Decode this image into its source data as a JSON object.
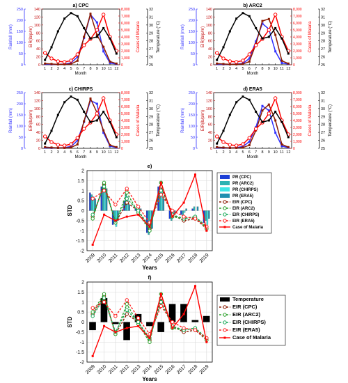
{
  "chart_data": [
    {
      "type": "line",
      "title": "a) CPC",
      "xlabel": "Month",
      "ylabel_left": "Rainfall (mm)",
      "ylabel_mid": "EIR(ib/p/m)",
      "ylabel_right1": "Cases of Malaria",
      "ylabel_right2": "Temperature (°C)",
      "x": [
        1,
        2,
        3,
        4,
        5,
        6,
        7,
        8,
        9,
        10,
        11,
        12
      ],
      "rainfall_ylim": [
        0,
        250
      ],
      "rainfall_ticks": [
        0,
        50,
        100,
        150,
        200,
        250
      ],
      "eir_ylim": [
        0,
        140
      ],
      "eir_ticks": [
        0,
        20,
        40,
        60,
        80,
        100,
        120,
        140
      ],
      "cases_ylim": [
        0,
        8000
      ],
      "cases_ticks": [
        "0",
        "1,000",
        "2,000",
        "3,000",
        "4,000",
        "5,000",
        "6,000",
        "7,000",
        "8,000"
      ],
      "temp_ylim": [
        25,
        32
      ],
      "temp_ticks": [
        25,
        26,
        27,
        28,
        29,
        30,
        31,
        32
      ],
      "series": [
        {
          "name": "Rainfall",
          "color": "#2f2fff",
          "values": [
            3,
            2,
            2,
            3,
            8,
            35,
            120,
            225,
            190,
            60,
            8,
            3
          ]
        },
        {
          "name": "EIR",
          "color": "#8b1a00",
          "values": [
            3,
            2,
            1,
            1,
            2,
            10,
            70,
            128,
            75,
            45,
            8,
            3
          ]
        },
        {
          "name": "Cases of Malaria",
          "color": "#ff0000",
          "values": [
            1700,
            900,
            500,
            400,
            600,
            1500,
            2800,
            3700,
            5000,
            7200,
            4000,
            2000
          ]
        },
        {
          "name": "Temperature",
          "color": "#000000",
          "values": [
            25.6,
            27.2,
            29.2,
            30.8,
            31.5,
            31.1,
            29.6,
            28.3,
            28.5,
            29.6,
            28.3,
            26.4
          ]
        }
      ]
    },
    {
      "type": "line",
      "title": "b) ARC2",
      "xlabel": "Month",
      "ylabel_left": "Rainfall (mm)",
      "ylabel_mid": "EIR(ib/p/m)",
      "ylabel_right1": "Cases of Malaria",
      "ylabel_right2": "Temperature (°C)",
      "x": [
        1,
        2,
        3,
        4,
        5,
        6,
        7,
        8,
        9,
        10,
        11,
        12
      ],
      "rainfall_ylim": [
        0,
        250
      ],
      "rainfall_ticks": [
        0,
        50,
        100,
        150,
        200,
        250
      ],
      "eir_ylim": [
        0,
        140
      ],
      "eir_ticks": [
        0,
        20,
        40,
        60,
        80,
        100,
        120,
        140
      ],
      "cases_ylim": [
        0,
        8000
      ],
      "cases_ticks": [
        "0",
        "1,000",
        "2,000",
        "3,000",
        "4,000",
        "5,000",
        "6,000",
        "7,000",
        "8,000"
      ],
      "temp_ylim": [
        25,
        32
      ],
      "temp_ticks": [
        25,
        26,
        27,
        28,
        29,
        30,
        31,
        32
      ],
      "series": [
        {
          "name": "Rainfall",
          "color": "#2f2fff",
          "values": [
            3,
            2,
            2,
            3,
            6,
            28,
            105,
            185,
            160,
            60,
            8,
            3
          ]
        },
        {
          "name": "EIR",
          "color": "#8b1a00",
          "values": [
            3,
            2,
            1,
            1,
            2,
            8,
            52,
            110,
            115,
            75,
            10,
            3
          ]
        },
        {
          "name": "Cases of Malaria",
          "color": "#ff0000",
          "values": [
            1700,
            900,
            500,
            400,
            600,
            1500,
            2800,
            3700,
            5000,
            7200,
            4000,
            2000
          ]
        },
        {
          "name": "Temperature",
          "color": "#000000",
          "values": [
            25.6,
            27.2,
            29.2,
            30.8,
            31.5,
            31.1,
            29.6,
            28.3,
            28.5,
            29.6,
            28.3,
            26.4
          ]
        }
      ]
    },
    {
      "type": "line",
      "title": "c) CHIRPS",
      "xlabel": "Month",
      "ylabel_left": "Rainfall (mm)",
      "ylabel_mid": "EIR(ib/p/m)",
      "ylabel_right1": "Cases of Malaria",
      "ylabel_right2": "Temperature (°C)",
      "x": [
        1,
        2,
        3,
        4,
        5,
        6,
        7,
        8,
        9,
        10,
        11,
        12
      ],
      "rainfall_ylim": [
        0,
        250
      ],
      "rainfall_ticks": [
        0,
        50,
        100,
        150,
        200,
        250
      ],
      "eir_ylim": [
        0,
        140
      ],
      "eir_ticks": [
        0,
        20,
        40,
        60,
        80,
        100,
        120,
        140
      ],
      "cases_ylim": [
        0,
        8000
      ],
      "cases_ticks": [
        "0",
        "1,000",
        "2,000",
        "3,000",
        "4,000",
        "5,000",
        "6,000",
        "7,000",
        "8,000"
      ],
      "temp_ylim": [
        25,
        32
      ],
      "temp_ticks": [
        25,
        26,
        27,
        28,
        29,
        30,
        31,
        32
      ],
      "series": [
        {
          "name": "Rainfall",
          "color": "#2f2fff",
          "values": [
            3,
            2,
            2,
            3,
            8,
            35,
            118,
            215,
            200,
            70,
            10,
            3
          ]
        },
        {
          "name": "EIR",
          "color": "#8b1a00",
          "values": [
            3,
            2,
            1,
            1,
            2,
            10,
            68,
            125,
            90,
            45,
            8,
            3
          ]
        },
        {
          "name": "Cases of Malaria",
          "color": "#ff0000",
          "values": [
            1700,
            900,
            500,
            400,
            600,
            1500,
            2800,
            3700,
            5000,
            7200,
            4000,
            2000
          ]
        },
        {
          "name": "Temperature",
          "color": "#000000",
          "values": [
            25.6,
            27.2,
            29.2,
            30.8,
            31.5,
            31.1,
            29.6,
            28.3,
            28.5,
            29.6,
            28.3,
            26.4
          ]
        }
      ]
    },
    {
      "type": "line",
      "title": "d) ERA5",
      "xlabel": "Month",
      "ylabel_left": "Rainfall (mm)",
      "ylabel_mid": "EIR(ib/p/m)",
      "ylabel_right1": "Cases of Malaria",
      "ylabel_right2": "Temperature (°C)",
      "x": [
        1,
        2,
        3,
        4,
        5,
        6,
        7,
        8,
        9,
        10,
        11,
        12
      ],
      "rainfall_ylim": [
        0,
        250
      ],
      "rainfall_ticks": [
        0,
        50,
        100,
        150,
        200,
        250
      ],
      "eir_ylim": [
        0,
        140
      ],
      "eir_ticks": [
        0,
        20,
        40,
        60,
        80,
        100,
        120,
        140
      ],
      "cases_ylim": [
        0,
        8000
      ],
      "cases_ticks": [
        "0",
        "1,000",
        "2,000",
        "3,000",
        "4,000",
        "5,000",
        "6,000",
        "7,000",
        "8,000"
      ],
      "temp_ylim": [
        25,
        32
      ],
      "temp_ticks": [
        25,
        26,
        27,
        28,
        29,
        30,
        31,
        32
      ],
      "series": [
        {
          "name": "Rainfall",
          "color": "#2f2fff",
          "values": [
            3,
            2,
            2,
            3,
            8,
            30,
            95,
            190,
            170,
            70,
            10,
            3
          ]
        },
        {
          "name": "EIR",
          "color": "#8b1a00",
          "values": [
            3,
            2,
            1,
            1,
            2,
            8,
            45,
            95,
            110,
            70,
            10,
            3
          ]
        },
        {
          "name": "Cases of Malaria",
          "color": "#ff0000",
          "values": [
            1700,
            900,
            500,
            400,
            600,
            1500,
            2800,
            3700,
            5000,
            7200,
            4000,
            2000
          ]
        },
        {
          "name": "Temperature",
          "color": "#000000",
          "values": [
            25.6,
            27.2,
            29.2,
            30.8,
            31.5,
            31.1,
            29.6,
            28.3,
            28.5,
            29.6,
            28.3,
            26.4
          ]
        }
      ]
    },
    {
      "type": "bar",
      "title": "e)",
      "xlabel": "Years",
      "ylabel": "STD",
      "ylim": [
        -2,
        2
      ],
      "yticks": [
        "-2",
        "-1.5",
        "-1",
        "-0.5",
        "0",
        "0.5",
        "1",
        "1.5",
        "2"
      ],
      "grid": true,
      "legend_position": "right",
      "categories": [
        "2009",
        "2010",
        "2011",
        "2012",
        "2013",
        "2014",
        "2015",
        "2016",
        "2017",
        "2018",
        "2019"
      ],
      "bar_series": [
        {
          "name": "PR (CPC)",
          "color": "#1c3fd6",
          "values": [
            0.9,
            1.2,
            -0.7,
            0.5,
            0.1,
            -1.1,
            1.2,
            -0.4,
            -0.2,
            0.1,
            -0.6
          ]
        },
        {
          "name": "PR (ARC2)",
          "color": "#2bb3b3",
          "values": [
            0.8,
            1.4,
            -0.6,
            0.9,
            0.0,
            -1.2,
            1.0,
            -0.5,
            -0.3,
            0.2,
            -0.5
          ]
        },
        {
          "name": "PR (CHIRPS)",
          "color": "#3fe6e6",
          "values": [
            0.7,
            1.3,
            -0.8,
            0.7,
            0.2,
            -1.0,
            1.1,
            -0.3,
            -0.1,
            0.0,
            -0.7
          ]
        },
        {
          "name": "PR (ERA5)",
          "color": "#1f8fb0",
          "values": [
            0.6,
            1.1,
            -0.5,
            0.3,
            0.1,
            -0.9,
            0.6,
            -0.2,
            0.1,
            0.2,
            -0.4
          ]
        }
      ],
      "line_series": [
        {
          "name": "EIR (CPC)",
          "color": "#8b1a00",
          "dashed": true,
          "values": [
            -0.3,
            1.3,
            -0.6,
            0.4,
            0.0,
            -0.9,
            1.2,
            -0.2,
            -0.5,
            -0.4,
            -0.9
          ]
        },
        {
          "name": "EIR (ARC2)",
          "color": "#2aa02a",
          "dashed": true,
          "values": [
            -0.4,
            1.4,
            -0.6,
            0.9,
            -0.1,
            -1.0,
            1.4,
            -0.3,
            -0.4,
            -0.3,
            -0.9
          ]
        },
        {
          "name": "EIR (CHIRPS)",
          "color": "#1aaa5a",
          "dashed": true,
          "values": [
            -0.2,
            1.2,
            -0.5,
            0.6,
            0.0,
            -0.8,
            1.0,
            -0.2,
            -0.4,
            -0.3,
            -0.8
          ]
        },
        {
          "name": "EIR (ERA5)",
          "color": "#ff2222",
          "dashed": true,
          "values": [
            0.6,
            1.0,
            0.3,
            1.1,
            0.2,
            -0.6,
            0.8,
            0.0,
            -0.3,
            -0.4,
            -0.8
          ]
        },
        {
          "name": "Case of Malaria",
          "color": "#ff0000",
          "dashed": false,
          "values": [
            -1.7,
            -0.2,
            -0.5,
            -0.3,
            -0.2,
            -0.8,
            1.4,
            -0.3,
            0.4,
            1.8,
            -1.0
          ]
        }
      ]
    },
    {
      "type": "bar",
      "title": "f)",
      "xlabel": "Years",
      "ylabel": "STD",
      "ylim": [
        -2,
        2
      ],
      "yticks": [
        "-2",
        "-1.5",
        "-1",
        "-0.5",
        "0",
        "0.5",
        "1",
        "1.5",
        "2"
      ],
      "grid": true,
      "legend_position": "right",
      "categories": [
        "2009",
        "2010",
        "2011",
        "2012",
        "2013",
        "2014",
        "2015",
        "2016",
        "2017",
        "2018",
        "2019"
      ],
      "bar_series": [
        {
          "name": "Temperature",
          "color": "#000000",
          "values": [
            -0.4,
            1.2,
            -0.1,
            -0.9,
            0.4,
            -0.2,
            -0.5,
            0.9,
            0.9,
            0.1,
            0.3
          ]
        }
      ],
      "line_series": [
        {
          "name": "EIR (CPC)",
          "color": "#8b1a00",
          "dashed": true,
          "values": [
            0.4,
            1.3,
            -0.6,
            0.4,
            0.0,
            -0.9,
            1.2,
            -0.2,
            -0.5,
            -0.4,
            -0.9
          ]
        },
        {
          "name": "EIR (ARC2)",
          "color": "#2aa02a",
          "dashed": true,
          "values": [
            0.5,
            1.4,
            -0.6,
            0.9,
            -0.1,
            -1.0,
            1.4,
            -0.3,
            -0.4,
            -0.3,
            -0.9
          ]
        },
        {
          "name": "EIR (CHIRPS)",
          "color": "#1aaa5a",
          "dashed": true,
          "values": [
            0.3,
            1.2,
            -0.5,
            0.6,
            0.0,
            -0.8,
            1.0,
            -0.2,
            -0.4,
            -0.3,
            -0.8
          ]
        },
        {
          "name": "EIR (ERA5)",
          "color": "#ff2222",
          "dashed": true,
          "values": [
            0.7,
            1.0,
            0.3,
            1.1,
            0.2,
            -0.6,
            0.8,
            0.0,
            -0.3,
            -0.4,
            -0.8
          ]
        },
        {
          "name": "Case of Malaria",
          "color": "#ff0000",
          "dashed": false,
          "values": [
            -1.7,
            -0.2,
            -0.5,
            -0.3,
            -0.2,
            -0.8,
            1.4,
            -0.3,
            0.4,
            1.8,
            -1.0
          ]
        }
      ]
    }
  ]
}
